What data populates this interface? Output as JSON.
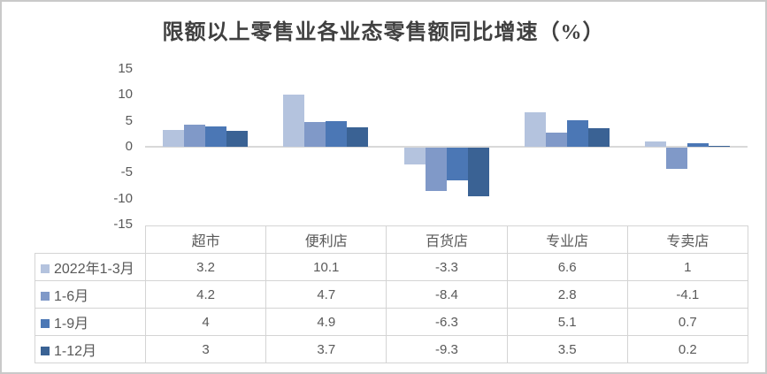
{
  "window": {
    "background": "#ffffff",
    "border_color": "#c9c9c9"
  },
  "chart_data": {
    "type": "bar",
    "title": "限额以上零售业各业态零售额同比增速（%）",
    "categories": [
      "超市",
      "便利店",
      "百货店",
      "专业店",
      "专卖店"
    ],
    "series": [
      {
        "name": "2022年1-3月",
        "color": "#b4c3de",
        "values": [
          3.2,
          10.1,
          -3.3,
          6.6,
          1
        ]
      },
      {
        "name": "1-6月",
        "color": "#8099c8",
        "values": [
          4.2,
          4.7,
          -8.4,
          2.8,
          -4.1
        ]
      },
      {
        "name": "1-9月",
        "color": "#4b77b5",
        "values": [
          4,
          4.9,
          -6.3,
          5.1,
          0.7
        ]
      },
      {
        "name": "1-12月",
        "color": "#3a6294",
        "values": [
          3,
          3.7,
          -9.3,
          3.5,
          0.2
        ]
      }
    ],
    "ylim": [
      -15,
      15
    ],
    "yticks": [
      15,
      10,
      5,
      0,
      -5,
      -10,
      -15
    ],
    "grid": false,
    "legend_position": "data-table-left",
    "axis_line_color": "#d9d9d9",
    "tick_label_color": "#595959",
    "title_color": "#404040",
    "table_border_color": "#d4d4d4",
    "table_text_color": "#595959"
  }
}
